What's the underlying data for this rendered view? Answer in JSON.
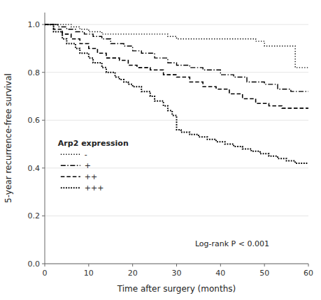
{
  "chart_data": {
    "type": "step",
    "xlabel": "Time after surgery (months)",
    "ylabel": "5-year recurrence-free survival",
    "annotation": "Log-rank P < 0.001",
    "legend_title": "Arp2 expression",
    "legend": "lower left",
    "xlim": [
      0,
      60
    ],
    "ylim": [
      0,
      1.05
    ],
    "xticks": [
      0,
      10,
      20,
      30,
      40,
      50,
      60
    ],
    "yticks": [
      {
        "value": 0.0,
        "label": "0.0"
      },
      0.2,
      0.4,
      0.6,
      0.8,
      {
        "value": 1.0,
        "label": "1.0"
      }
    ],
    "series": [
      {
        "name": "-",
        "color": "black",
        "line_style": "dotted",
        "x": [
          0,
          4,
          6,
          8,
          10,
          13,
          27,
          28,
          30,
          46,
          48,
          50,
          55,
          57,
          60
        ],
        "values": [
          1.0,
          1.0,
          0.99,
          0.98,
          0.97,
          0.96,
          0.96,
          0.95,
          0.94,
          0.94,
          0.93,
          0.91,
          0.91,
          0.82,
          0.82
        ]
      },
      {
        "name": "+",
        "color": "black",
        "line_style": "dashdot",
        "x": [
          0,
          3,
          5,
          7,
          9,
          11,
          13,
          15,
          18,
          20,
          22,
          25,
          28,
          30,
          33,
          36,
          40,
          43,
          46,
          50,
          53,
          56,
          60
        ],
        "values": [
          1.0,
          0.99,
          0.98,
          0.97,
          0.96,
          0.95,
          0.94,
          0.92,
          0.91,
          0.89,
          0.88,
          0.86,
          0.84,
          0.83,
          0.82,
          0.81,
          0.79,
          0.78,
          0.76,
          0.75,
          0.73,
          0.72,
          0.72
        ]
      },
      {
        "name": "++",
        "color": "black",
        "line_style": "dashed",
        "x": [
          0,
          2,
          4,
          6,
          8,
          10,
          12,
          14,
          17,
          19,
          21,
          24,
          27,
          30,
          33,
          36,
          39,
          42,
          45,
          48,
          51,
          54,
          57,
          60
        ],
        "values": [
          1.0,
          0.98,
          0.96,
          0.94,
          0.92,
          0.9,
          0.88,
          0.86,
          0.85,
          0.83,
          0.82,
          0.81,
          0.79,
          0.78,
          0.76,
          0.74,
          0.73,
          0.71,
          0.69,
          0.67,
          0.66,
          0.65,
          0.65,
          0.65
        ]
      },
      {
        "name": "+++",
        "color": "black",
        "line_style": "dense-dotted",
        "x": [
          0,
          2,
          4,
          5,
          7,
          8,
          10,
          11,
          13,
          14,
          16,
          17,
          18,
          19,
          20,
          22,
          24,
          25,
          27,
          28,
          29,
          30,
          31,
          33,
          35,
          37,
          39,
          41,
          43,
          45,
          47,
          49,
          51,
          53,
          55,
          57,
          59,
          60
        ],
        "values": [
          1.0,
          0.97,
          0.94,
          0.92,
          0.9,
          0.88,
          0.86,
          0.84,
          0.82,
          0.8,
          0.78,
          0.77,
          0.76,
          0.75,
          0.74,
          0.72,
          0.7,
          0.68,
          0.66,
          0.64,
          0.62,
          0.56,
          0.55,
          0.54,
          0.53,
          0.52,
          0.51,
          0.5,
          0.49,
          0.48,
          0.47,
          0.46,
          0.45,
          0.44,
          0.43,
          0.42,
          0.42,
          0.42
        ]
      }
    ]
  }
}
